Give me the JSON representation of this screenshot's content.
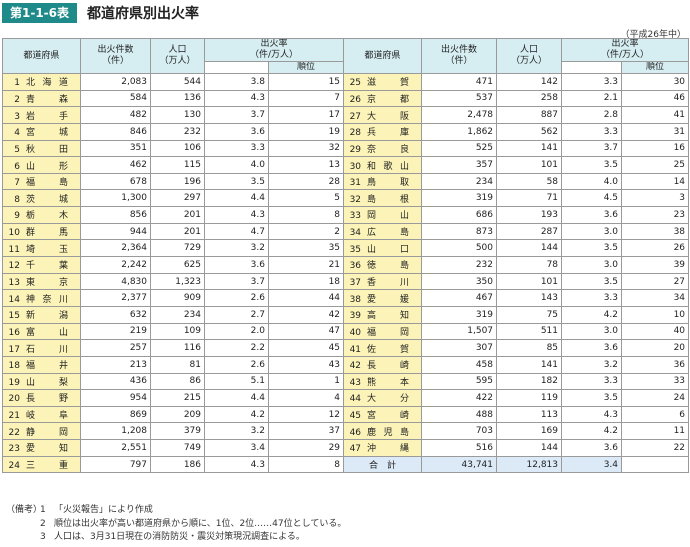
{
  "header": {
    "tag": "第1-1-6表",
    "title": "都道府県別出火率"
  },
  "note_right": "（平成26年中）",
  "columns": {
    "pref": "都道府県",
    "fires_l1": "出火件数",
    "fires_l2": "（件）",
    "pop_l1": "人口",
    "pop_l2": "（万人）",
    "rate_l1": "出火率",
    "rate_l2": "（件/万人）",
    "rank": "順位"
  },
  "left_rows": [
    {
      "no": "1",
      "name": "北海道",
      "fires": "2,083",
      "pop": "544",
      "rate": "3.8",
      "rank": "15"
    },
    {
      "no": "2",
      "name": "青森",
      "fires": "584",
      "pop": "136",
      "rate": "4.3",
      "rank": "7"
    },
    {
      "no": "3",
      "name": "岩手",
      "fires": "482",
      "pop": "130",
      "rate": "3.7",
      "rank": "17"
    },
    {
      "no": "4",
      "name": "宮城",
      "fires": "846",
      "pop": "232",
      "rate": "3.6",
      "rank": "19"
    },
    {
      "no": "5",
      "name": "秋田",
      "fires": "351",
      "pop": "106",
      "rate": "3.3",
      "rank": "32"
    },
    {
      "no": "6",
      "name": "山形",
      "fires": "462",
      "pop": "115",
      "rate": "4.0",
      "rank": "13"
    },
    {
      "no": "7",
      "name": "福島",
      "fires": "678",
      "pop": "196",
      "rate": "3.5",
      "rank": "28"
    },
    {
      "no": "8",
      "name": "茨城",
      "fires": "1,300",
      "pop": "297",
      "rate": "4.4",
      "rank": "5"
    },
    {
      "no": "9",
      "name": "栃木",
      "fires": "856",
      "pop": "201",
      "rate": "4.3",
      "rank": "8"
    },
    {
      "no": "10",
      "name": "群馬",
      "fires": "944",
      "pop": "201",
      "rate": "4.7",
      "rank": "2"
    },
    {
      "no": "11",
      "name": "埼玉",
      "fires": "2,364",
      "pop": "729",
      "rate": "3.2",
      "rank": "35"
    },
    {
      "no": "12",
      "name": "千葉",
      "fires": "2,242",
      "pop": "625",
      "rate": "3.6",
      "rank": "21"
    },
    {
      "no": "13",
      "name": "東京",
      "fires": "4,830",
      "pop": "1,323",
      "rate": "3.7",
      "rank": "18"
    },
    {
      "no": "14",
      "name": "神奈川",
      "fires": "2,377",
      "pop": "909",
      "rate": "2.6",
      "rank": "44"
    },
    {
      "no": "15",
      "name": "新潟",
      "fires": "632",
      "pop": "234",
      "rate": "2.7",
      "rank": "42"
    },
    {
      "no": "16",
      "name": "富山",
      "fires": "219",
      "pop": "109",
      "rate": "2.0",
      "rank": "47"
    },
    {
      "no": "17",
      "name": "石川",
      "fires": "257",
      "pop": "116",
      "rate": "2.2",
      "rank": "45"
    },
    {
      "no": "18",
      "name": "福井",
      "fires": "213",
      "pop": "81",
      "rate": "2.6",
      "rank": "43"
    },
    {
      "no": "19",
      "name": "山梨",
      "fires": "436",
      "pop": "86",
      "rate": "5.1",
      "rank": "1"
    },
    {
      "no": "20",
      "name": "長野",
      "fires": "954",
      "pop": "215",
      "rate": "4.4",
      "rank": "4"
    },
    {
      "no": "21",
      "name": "岐阜",
      "fires": "869",
      "pop": "209",
      "rate": "4.2",
      "rank": "12"
    },
    {
      "no": "22",
      "name": "静岡",
      "fires": "1,208",
      "pop": "379",
      "rate": "3.2",
      "rank": "37"
    },
    {
      "no": "23",
      "name": "愛知",
      "fires": "2,551",
      "pop": "749",
      "rate": "3.4",
      "rank": "29"
    },
    {
      "no": "24",
      "name": "三重",
      "fires": "797",
      "pop": "186",
      "rate": "4.3",
      "rank": "8"
    }
  ],
  "right_rows": [
    {
      "no": "25",
      "name": "滋賀",
      "fires": "471",
      "pop": "142",
      "rate": "3.3",
      "rank": "30"
    },
    {
      "no": "26",
      "name": "京都",
      "fires": "537",
      "pop": "258",
      "rate": "2.1",
      "rank": "46"
    },
    {
      "no": "27",
      "name": "大阪",
      "fires": "2,478",
      "pop": "887",
      "rate": "2.8",
      "rank": "41"
    },
    {
      "no": "28",
      "name": "兵庫",
      "fires": "1,862",
      "pop": "562",
      "rate": "3.3",
      "rank": "31"
    },
    {
      "no": "29",
      "name": "奈良",
      "fires": "525",
      "pop": "141",
      "rate": "3.7",
      "rank": "16"
    },
    {
      "no": "30",
      "name": "和歌山",
      "fires": "357",
      "pop": "101",
      "rate": "3.5",
      "rank": "25"
    },
    {
      "no": "31",
      "name": "鳥取",
      "fires": "234",
      "pop": "58",
      "rate": "4.0",
      "rank": "14"
    },
    {
      "no": "32",
      "name": "島根",
      "fires": "319",
      "pop": "71",
      "rate": "4.5",
      "rank": "3"
    },
    {
      "no": "33",
      "name": "岡山",
      "fires": "686",
      "pop": "193",
      "rate": "3.6",
      "rank": "23"
    },
    {
      "no": "34",
      "name": "広島",
      "fires": "873",
      "pop": "287",
      "rate": "3.0",
      "rank": "38"
    },
    {
      "no": "35",
      "name": "山口",
      "fires": "500",
      "pop": "144",
      "rate": "3.5",
      "rank": "26"
    },
    {
      "no": "36",
      "name": "徳島",
      "fires": "232",
      "pop": "78",
      "rate": "3.0",
      "rank": "39"
    },
    {
      "no": "37",
      "name": "香川",
      "fires": "350",
      "pop": "101",
      "rate": "3.5",
      "rank": "27"
    },
    {
      "no": "38",
      "name": "愛媛",
      "fires": "467",
      "pop": "143",
      "rate": "3.3",
      "rank": "34"
    },
    {
      "no": "39",
      "name": "高知",
      "fires": "319",
      "pop": "75",
      "rate": "4.2",
      "rank": "10"
    },
    {
      "no": "40",
      "name": "福岡",
      "fires": "1,507",
      "pop": "511",
      "rate": "3.0",
      "rank": "40"
    },
    {
      "no": "41",
      "name": "佐賀",
      "fires": "307",
      "pop": "85",
      "rate": "3.6",
      "rank": "20"
    },
    {
      "no": "42",
      "name": "長崎",
      "fires": "458",
      "pop": "141",
      "rate": "3.2",
      "rank": "36"
    },
    {
      "no": "43",
      "name": "熊本",
      "fires": "595",
      "pop": "182",
      "rate": "3.3",
      "rank": "33"
    },
    {
      "no": "44",
      "name": "大分",
      "fires": "422",
      "pop": "119",
      "rate": "3.5",
      "rank": "24"
    },
    {
      "no": "45",
      "name": "宮崎",
      "fires": "488",
      "pop": "113",
      "rate": "4.3",
      "rank": "6"
    },
    {
      "no": "46",
      "name": "鹿児島",
      "fires": "703",
      "pop": "169",
      "rate": "4.2",
      "rank": "11"
    },
    {
      "no": "47",
      "name": "沖縄",
      "fires": "516",
      "pop": "144",
      "rate": "3.6",
      "rank": "22"
    }
  ],
  "total": {
    "label": "合　計",
    "fires": "43,741",
    "pop": "12,813",
    "rate": "3.4"
  },
  "notes": {
    "label": "（備考）",
    "items": [
      {
        "n": "1",
        "text": "「火災報告」により作成"
      },
      {
        "n": "2",
        "text": "順位は出火率が高い都道府県から順に、1位、2位……47位としている。"
      },
      {
        "n": "3",
        "text": "人口は、3月31日現在の消防防災・震災対策現況調査による。"
      }
    ]
  }
}
